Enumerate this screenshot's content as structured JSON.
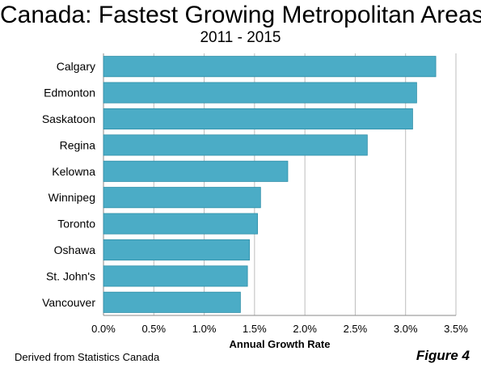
{
  "chart_data": {
    "type": "bar",
    "orientation": "horizontal",
    "title": "Canada: Fastest Growing Metropolitan Areas",
    "subtitle": "2011 - 2015",
    "xlabel": "Annual Growth Rate",
    "ylabel": "",
    "categories": [
      "Calgary",
      "Edmonton",
      "Saskatoon",
      "Regina",
      "Kelowna",
      "Winnipeg",
      "Toronto",
      "Oshawa",
      "St. John's",
      "Vancouver"
    ],
    "values": [
      3.3,
      3.11,
      3.07,
      2.62,
      1.83,
      1.56,
      1.53,
      1.45,
      1.43,
      1.36
    ],
    "value_unit": "%",
    "xlim": [
      0,
      3.5
    ],
    "xticks": [
      "0.0%",
      "0.5%",
      "1.0%",
      "1.5%",
      "2.0%",
      "2.5%",
      "3.0%",
      "3.5%"
    ],
    "grid": "vertical",
    "bar_color": "#4BACC6",
    "bar_stroke": "#2F8FA8"
  },
  "footer": {
    "source": "Derived from Statistics Canada",
    "figure_label": "Figure 4"
  }
}
